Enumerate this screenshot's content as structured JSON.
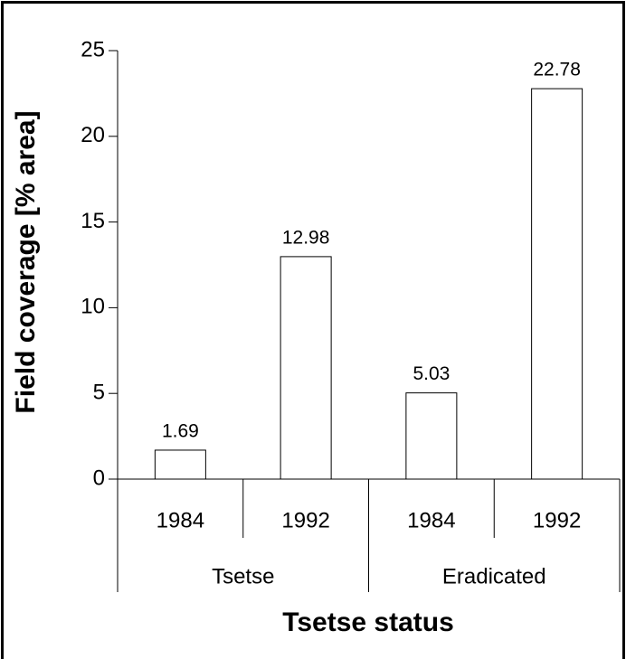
{
  "chart_data": {
    "type": "bar",
    "xlabel": "Tsetse status",
    "ylabel": "Field coverage [% area]",
    "groups": [
      {
        "label": "Tsetse",
        "categories": [
          "1984",
          "1992"
        ]
      },
      {
        "label": "Eradicated",
        "categories": [
          "1984",
          "1992"
        ]
      }
    ],
    "values": [
      1.69,
      12.98,
      5.03,
      22.78
    ],
    "color": "#ffffff",
    "ylim": [
      0,
      25
    ],
    "yticks": [
      0,
      5,
      10,
      15,
      20,
      25
    ],
    "grid": false
  }
}
